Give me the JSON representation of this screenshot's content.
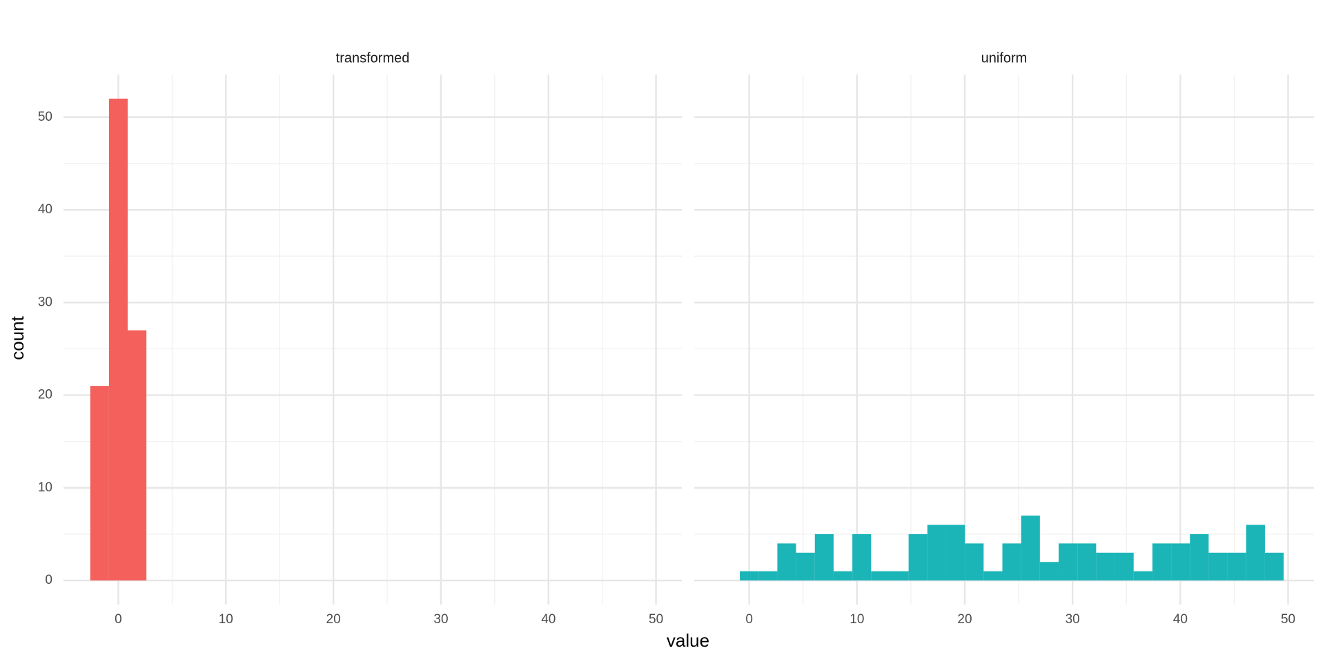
{
  "chart_data": [
    {
      "type": "histogram",
      "title": "transformed",
      "xlabel": "value",
      "ylabel": "count",
      "color": "#f4605c",
      "bins": [
        -2.61,
        -0.87,
        0.87,
        2.61
      ],
      "values": [
        21,
        52,
        27
      ],
      "xlim": [
        -5.1,
        52.4
      ],
      "ylim": [
        -2.6,
        54.6
      ],
      "xticks": [
        0,
        10,
        20,
        30,
        40,
        50
      ],
      "yticks": [
        0,
        10,
        20,
        30,
        40,
        50
      ],
      "grid": true
    },
    {
      "type": "histogram",
      "title": "uniform",
      "color": "#1bb5b8",
      "bins": [
        -0.87,
        0.87,
        2.61,
        4.35,
        6.09,
        7.83,
        9.57,
        11.31,
        13.05,
        14.79,
        16.53,
        18.27,
        20.01,
        21.75,
        23.49,
        25.23,
        26.97,
        28.71,
        30.45,
        32.19,
        33.93,
        35.67,
        37.41,
        39.15,
        40.89,
        42.63,
        44.37,
        46.11,
        47.85,
        49.59
      ],
      "values": [
        1,
        1,
        4,
        3,
        5,
        1,
        5,
        1,
        1,
        5,
        6,
        6,
        4,
        1,
        4,
        7,
        2,
        4,
        4,
        3,
        3,
        1,
        4,
        4,
        5,
        3,
        3,
        6,
        3
      ],
      "xlim": [
        -5.1,
        52.4
      ],
      "ylim": [
        -2.6,
        54.6
      ],
      "xticks": [
        0,
        10,
        20,
        30,
        40,
        50
      ],
      "yticks": [
        0,
        10,
        20,
        30,
        40,
        50
      ],
      "grid": true
    }
  ]
}
